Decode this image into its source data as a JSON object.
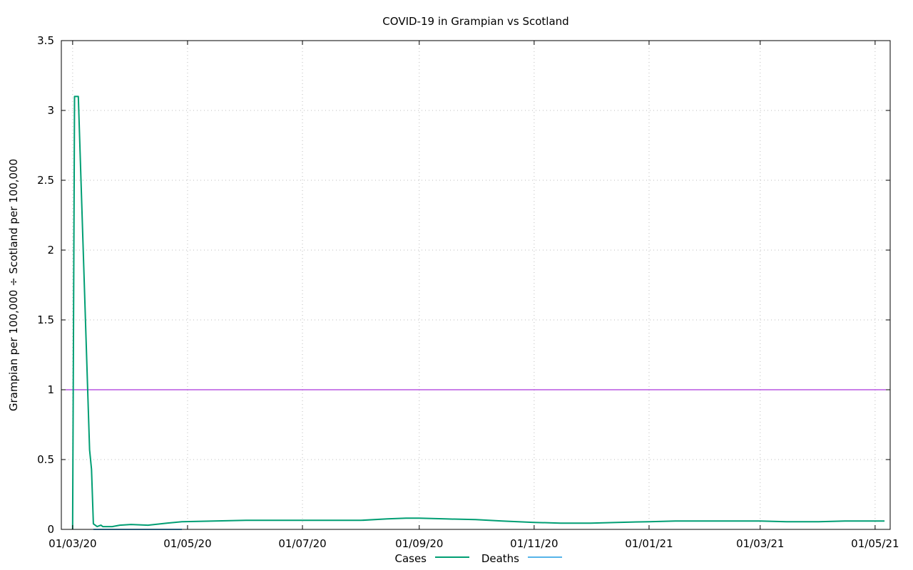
{
  "chart_data": {
    "type": "line",
    "title": "COVID-19 in Grampian vs Scotland",
    "xlabel": "",
    "ylabel": "Grampian per 100,000 ÷ Scotland per 100,000",
    "xlim": [
      "2020-02-24",
      "2021-05-09"
    ],
    "ylim": [
      0,
      3.5
    ],
    "x_ticks": [
      "01/03/20",
      "01/05/20",
      "01/07/20",
      "01/09/20",
      "01/11/20",
      "01/01/21",
      "01/03/21",
      "01/05/21"
    ],
    "x_tick_dates": [
      "2020-03-01",
      "2020-05-01",
      "2020-07-01",
      "2020-09-01",
      "2020-11-01",
      "2021-01-01",
      "2021-03-01",
      "2021-05-01"
    ],
    "y_ticks": [
      0,
      0.5,
      1,
      1.5,
      2,
      2.5,
      3,
      3.5
    ],
    "y_tick_labels": [
      "0",
      "0.5",
      "1",
      "1.5",
      "2",
      "2.5",
      "3",
      "3.5"
    ],
    "grid": true,
    "legend_position": "bottom-center",
    "reference_line": {
      "y": 1,
      "color": "#9400d3"
    },
    "series": [
      {
        "name": "Cases",
        "color": "#009e73",
        "points": [
          [
            "2020-03-01",
            0
          ],
          [
            "2020-03-02",
            3.1
          ],
          [
            "2020-03-04",
            3.1
          ],
          [
            "2020-03-10",
            0.57
          ],
          [
            "2020-03-11",
            0.43
          ],
          [
            "2020-03-12",
            0.04
          ],
          [
            "2020-03-14",
            0.02
          ],
          [
            "2020-03-16",
            0.03
          ],
          [
            "2020-03-17",
            0.02
          ],
          [
            "2020-03-22",
            0.02
          ],
          [
            "2020-03-26",
            0.03
          ],
          [
            "2020-04-01",
            0.035
          ],
          [
            "2020-04-10",
            0.03
          ],
          [
            "2020-04-20",
            0.045
          ],
          [
            "2020-04-28",
            0.055
          ],
          [
            "2020-05-15",
            0.06
          ],
          [
            "2020-06-01",
            0.065
          ],
          [
            "2020-07-01",
            0.065
          ],
          [
            "2020-08-01",
            0.065
          ],
          [
            "2020-08-15",
            0.075
          ],
          [
            "2020-08-25",
            0.08
          ],
          [
            "2020-09-01",
            0.08
          ],
          [
            "2020-09-15",
            0.075
          ],
          [
            "2020-10-01",
            0.07
          ],
          [
            "2020-10-15",
            0.06
          ],
          [
            "2020-11-01",
            0.05
          ],
          [
            "2020-11-15",
            0.045
          ],
          [
            "2020-12-01",
            0.045
          ],
          [
            "2020-12-15",
            0.05
          ],
          [
            "2021-01-01",
            0.055
          ],
          [
            "2021-01-15",
            0.06
          ],
          [
            "2021-02-15",
            0.06
          ],
          [
            "2021-03-01",
            0.06
          ],
          [
            "2021-03-15",
            0.055
          ],
          [
            "2021-04-01",
            0.055
          ],
          [
            "2021-04-15",
            0.06
          ],
          [
            "2021-05-01",
            0.06
          ],
          [
            "2021-05-06",
            0.06
          ]
        ]
      },
      {
        "name": "Deaths",
        "color": "#56b4e9",
        "points": [
          [
            "2020-03-12",
            0
          ],
          [
            "2020-04-28",
            0
          ]
        ]
      }
    ]
  }
}
